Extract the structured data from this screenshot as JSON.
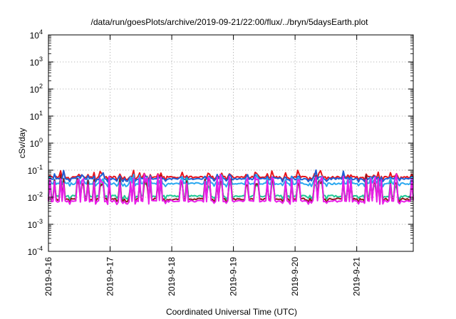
{
  "chart_data": {
    "type": "line",
    "title": "/data/run/goesPlots/archive/2019-09-21/22:00/flux/../bryn/5daysEarth.plot",
    "xlabel": "Coordinated Universal Time (UTC)",
    "ylabel": "cSv/day",
    "yscale": "log",
    "ylim": [
      0.0001,
      10000
    ],
    "xlim": [
      "2019-09-16",
      "2019-09-21 22:00"
    ],
    "y_ticks": [
      {
        "base": "10",
        "exp": "-4",
        "value": 0.0001
      },
      {
        "base": "10",
        "exp": "-3",
        "value": 0.001
      },
      {
        "base": "10",
        "exp": "-2",
        "value": 0.01
      },
      {
        "base": "10",
        "exp": "-1",
        "value": 0.1
      },
      {
        "base": "10",
        "exp": "0",
        "value": 1
      },
      {
        "base": "10",
        "exp": "1",
        "value": 10
      },
      {
        "base": "10",
        "exp": "2",
        "value": 100
      },
      {
        "base": "10",
        "exp": "3",
        "value": 1000
      },
      {
        "base": "10",
        "exp": "4",
        "value": 10000
      }
    ],
    "x_ticks": [
      "2019-9-16",
      "2019-9-17",
      "2019-9-18",
      "2019-9-19",
      "2019-9-20",
      "2019-9-21"
    ],
    "grid": true,
    "legend": "none",
    "series": [
      {
        "color": "#e8141c",
        "baseline": 0.055,
        "spikes": [
          0.1,
          0.09,
          0.09,
          0.1,
          0.07,
          0.09,
          0.12,
          0.08,
          0.09,
          0.07,
          0.08,
          0.09,
          0.08,
          0.08,
          0.07,
          0.07,
          0.06,
          0.06,
          0.06,
          0.06
        ]
      },
      {
        "color": "#1f5fd6",
        "baseline": 0.048,
        "spikes": [
          0.06,
          0.07,
          0.06,
          0.08,
          0.07,
          0.07,
          0.11,
          0.06,
          0.06,
          0.06,
          0.06,
          0.06,
          0.06,
          0.06,
          0.06,
          0.06
        ]
      },
      {
        "color": "#2aa8f0",
        "baseline": 0.032,
        "spikes": [
          0.05,
          0.06,
          0.05,
          0.06,
          0.05,
          0.05,
          0.08,
          0.05,
          0.05,
          0.05,
          0.05,
          0.05
        ]
      },
      {
        "color": "#20c997",
        "baseline": 0.011,
        "spikes": [
          0.04,
          0.03,
          0.04,
          0.05,
          0.04,
          0.04,
          0.06,
          0.04,
          0.04,
          0.03,
          0.04,
          0.03
        ]
      },
      {
        "color": "#8b1a1a",
        "baseline": 0.0085,
        "spikes": [
          0.04,
          0.05,
          0.05,
          0.05,
          0.04,
          0.05,
          0.07,
          0.05,
          0.04,
          0.04,
          0.05,
          0.04
        ]
      },
      {
        "color": "#e81ee8",
        "baseline": 0.0072,
        "spikes": [
          0.05,
          0.06,
          0.06,
          0.05,
          0.05,
          0.06,
          0.08,
          0.06,
          0.05,
          0.05,
          0.05,
          0.05
        ]
      }
    ]
  }
}
